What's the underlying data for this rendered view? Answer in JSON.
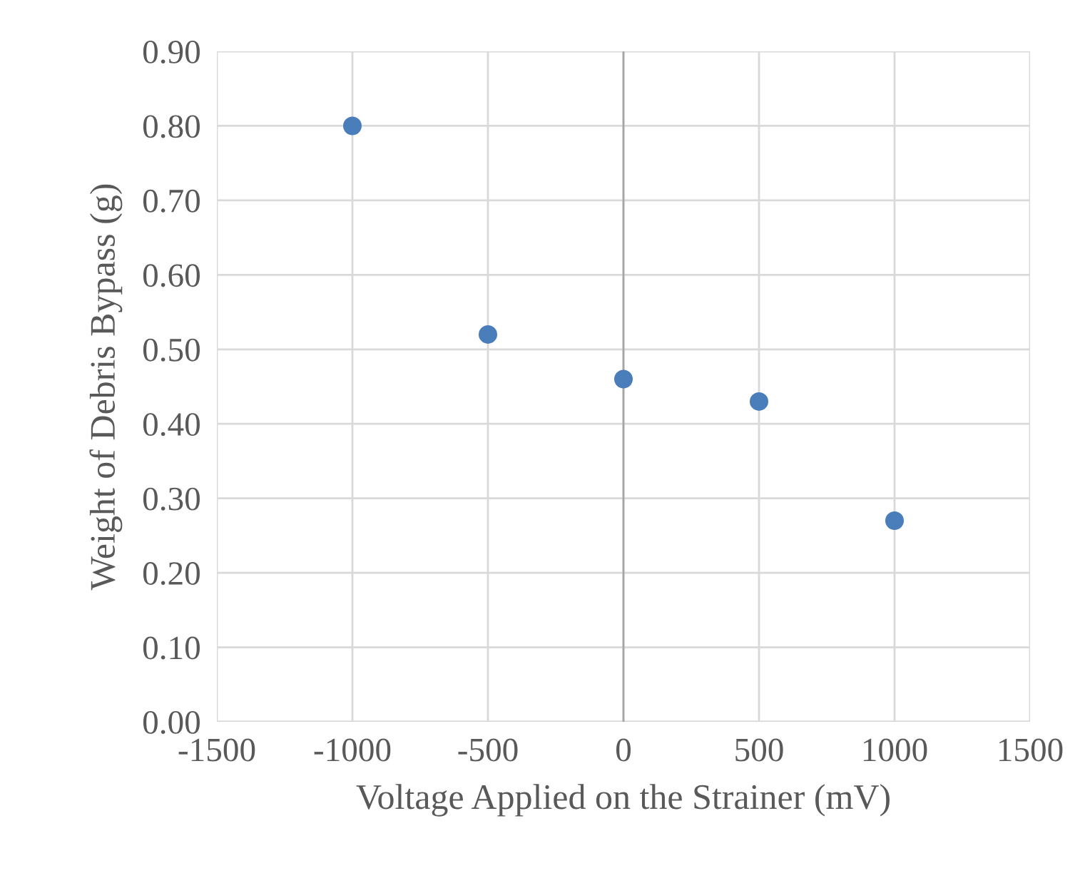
{
  "chart_data": {
    "type": "scatter",
    "xlabel": "Voltage Applied on the Strainer (mV)",
    "ylabel": "Weight of Debris Bypass (g)",
    "x": [
      -1000,
      -500,
      0,
      500,
      1000
    ],
    "series": [
      {
        "color": "#4a7ebb",
        "values": [
          0.8,
          0.52,
          0.46,
          0.43,
          0.27
        ]
      }
    ],
    "xlim": [
      -1500,
      1500
    ],
    "xticks": [
      -1500,
      -1000,
      -500,
      0,
      500,
      1000,
      1500
    ],
    "ylim": [
      0,
      0.9
    ],
    "yticks": [
      {
        "value": 0,
        "label": "0.00"
      },
      {
        "value": 0.1,
        "label": "0.10"
      },
      {
        "value": 0.2,
        "label": "0.20"
      },
      {
        "value": 0.3,
        "label": "0.30"
      },
      {
        "value": 0.4,
        "label": "0.40"
      },
      {
        "value": 0.5,
        "label": "0.50"
      },
      {
        "value": 0.6,
        "label": "0.60"
      },
      {
        "value": 0.7,
        "label": "0.70"
      },
      {
        "value": 0.8,
        "label": "0.80"
      },
      {
        "value": 0.9,
        "label": "0.90"
      }
    ],
    "grid": true,
    "marker": "circle"
  }
}
